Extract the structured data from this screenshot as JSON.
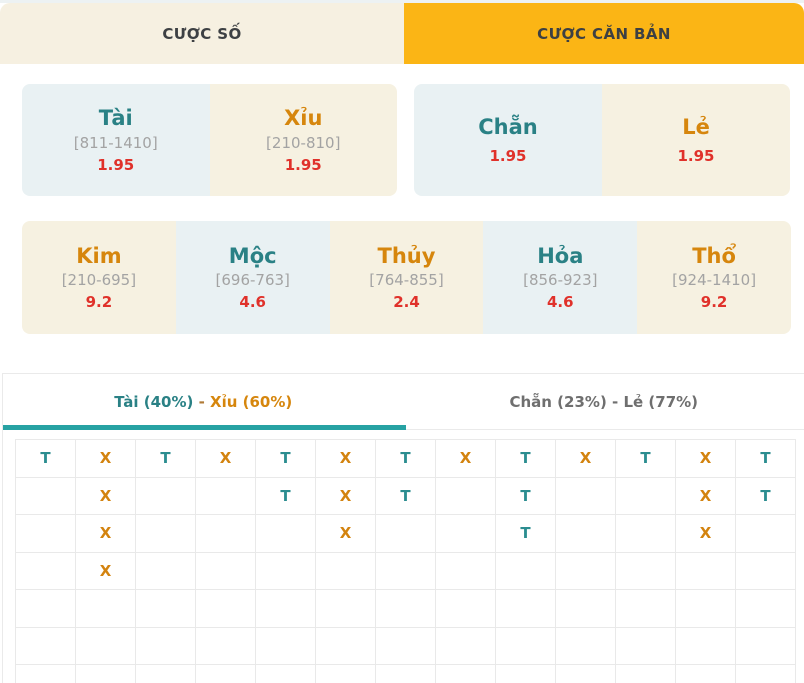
{
  "top_tabs": {
    "left": "CƯỢC SỐ",
    "right": "CƯỢC CĂN BẢN"
  },
  "cards": {
    "tai": {
      "title": "Tài",
      "range": "[811-1410]",
      "odds": "1.95"
    },
    "xiu": {
      "title": "Xỉu",
      "range": "[210-810]",
      "odds": "1.95"
    },
    "chan": {
      "title": "Chẵn",
      "odds": "1.95"
    },
    "le": {
      "title": "Lẻ",
      "odds": "1.95"
    },
    "elements": [
      {
        "title": "Kim",
        "range": "[210-695]",
        "odds": "9.2"
      },
      {
        "title": "Mộc",
        "range": "[696-763]",
        "odds": "4.6"
      },
      {
        "title": "Thủy",
        "range": "[764-855]",
        "odds": "2.4"
      },
      {
        "title": "Hỏa",
        "range": "[856-923]",
        "odds": "4.6"
      },
      {
        "title": "Thổ",
        "range": "[924-1410]",
        "odds": "9.2"
      }
    ]
  },
  "history_tabs": {
    "active": {
      "tai_part": "Tài (40%)",
      "separator": " - ",
      "xiu_part": "Xỉu (60%)"
    },
    "inactive": "Chẵn (23%) - Lẻ (77%)"
  },
  "roadmap": {
    "columns": 13,
    "rows": [
      [
        "T",
        "X",
        "T",
        "X",
        "T",
        "X",
        "T",
        "X",
        "T",
        "X",
        "T",
        "X",
        "T"
      ],
      [
        "",
        "X",
        "",
        "",
        "T",
        "X",
        "T",
        "",
        "T",
        "",
        "",
        "X",
        "T"
      ],
      [
        "",
        "X",
        "",
        "",
        "",
        "X",
        "",
        "",
        "T",
        "",
        "",
        "X",
        ""
      ],
      [
        "",
        "X",
        "",
        "",
        "",
        "",
        "",
        "",
        "",
        "",
        "",
        "",
        ""
      ],
      [
        "",
        "",
        "",
        "",
        "",
        "",
        "",
        "",
        "",
        "",
        "",
        "",
        ""
      ],
      [
        "",
        "",
        "",
        "",
        "",
        "",
        "",
        "",
        "",
        "",
        "",
        "",
        ""
      ],
      [
        "",
        "",
        "",
        "",
        "",
        "",
        "",
        "",
        "",
        "",
        "",
        "",
        ""
      ]
    ]
  },
  "colors": {
    "accent_teal": "#2a8185",
    "accent_orange": "#d6860d",
    "odds_red": "#e0312a",
    "active_tab_orange": "#fbb515",
    "cream_bg": "#f6f1e1",
    "light_blue_bg": "#e9f1f3",
    "underline_teal": "#27a2a3"
  }
}
